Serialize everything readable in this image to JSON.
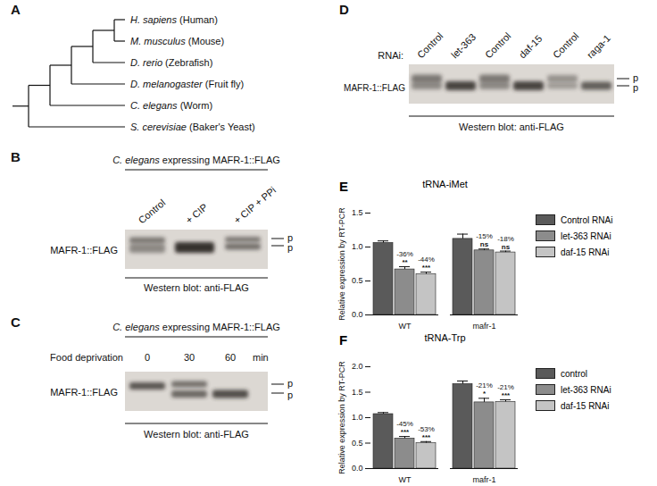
{
  "panels": {
    "A": {
      "label": "A",
      "type": "tree",
      "leaves": [
        {
          "species": "H. sapiens",
          "common": "(Human)"
        },
        {
          "species": "M. musculus",
          "common": "(Mouse)"
        },
        {
          "species": "D. rerio",
          "common": "(Zebrafish)"
        },
        {
          "species": "D. melanogaster",
          "common": "(Fruit fly)"
        },
        {
          "species": "C. elegans",
          "common": "(Worm)"
        },
        {
          "species": "S. cerevisiae",
          "common": "(Baker's Yeast)"
        }
      ]
    },
    "B": {
      "label": "B",
      "type": "western_blot",
      "title_italic": "C. elegans",
      "title": "expressing MAFR-1::FLAG",
      "lanes": [
        "Control",
        "+ CIP",
        "+ CIP + PPi"
      ],
      "protein": "MAFR-1::FLAG",
      "bands": [
        "p",
        "p"
      ],
      "footer": "Western blot: anti-FLAG"
    },
    "C": {
      "label": "C",
      "type": "western_blot",
      "title_italic": "C. elegans",
      "title": "expressing MAFR-1::FLAG",
      "condition": "Food deprivation",
      "lanes": [
        0,
        30,
        60
      ],
      "unit": "min",
      "protein": "MAFR-1::FLAG",
      "bands": [
        "p",
        "p"
      ],
      "footer": "Western blot: anti-FLAG"
    },
    "D": {
      "label": "D",
      "type": "western_blot",
      "row_title": "RNAi:",
      "lanes": [
        "Control",
        "let-363",
        "Control",
        "daf-15",
        "Control",
        "raga-1"
      ],
      "protein": "MAFR-1::FLAG",
      "bands": [
        "p",
        "p"
      ],
      "footer": "Western blot: anti-FLAG"
    }
  },
  "chart_data": [
    {
      "type": "bar",
      "panel_label": "E",
      "title": "tRNA-iMet",
      "y_label": "Relative expression by RT-PCR",
      "categories": [
        "WT",
        "mafr-1"
      ],
      "series": [
        {
          "name": "Control RNAi",
          "color": "#5a5a5a",
          "values": [
            1.06,
            1.12
          ],
          "errors": [
            0.03,
            0.07
          ],
          "change": [
            null,
            null
          ],
          "significance": [
            null,
            null
          ]
        },
        {
          "name": "let-363 RNAi",
          "color": "#8c8c8c",
          "values": [
            0.67,
            0.95
          ],
          "errors": [
            0.04,
            0.02
          ],
          "change": [
            "-36%",
            "-15%"
          ],
          "significance": [
            "**",
            "ns"
          ]
        },
        {
          "name": "daf-15 RNAi",
          "color": "#c4c4c4",
          "values": [
            0.6,
            0.92
          ],
          "errors": [
            0.03,
            0.02
          ],
          "change": [
            "-44%",
            "-18%"
          ],
          "significance": [
            "***",
            "ns"
          ]
        }
      ],
      "ylim": [
        0,
        1.5
      ],
      "yticks": [
        {
          "value": 0,
          "label": "0.0"
        },
        {
          "value": 0.5,
          "label": "0.5"
        },
        {
          "value": 1,
          "label": "1.0"
        },
        {
          "value": 1.5,
          "label": "1.5"
        }
      ],
      "legend": "right"
    },
    {
      "type": "bar",
      "panel_label": "F",
      "title": "tRNA-Trp",
      "y_label": "Relative expression by RT-PCR",
      "categories": [
        "WT",
        "mafr-1"
      ],
      "series": [
        {
          "name": "control",
          "color": "#5a5a5a",
          "values": [
            1.07,
            1.66
          ],
          "errors": [
            0.03,
            0.06
          ],
          "change": [
            null,
            null
          ],
          "significance": [
            null,
            null
          ]
        },
        {
          "name": "let-363 RNAi",
          "color": "#8c8c8c",
          "values": [
            0.59,
            1.3
          ],
          "errors": [
            0.04,
            0.08
          ],
          "change": [
            "-45%",
            "-21%"
          ],
          "significance": [
            "***",
            "*"
          ]
        },
        {
          "name": "daf-15 RNAi",
          "color": "#c4c4c4",
          "values": [
            0.5,
            1.31
          ],
          "errors": [
            0.03,
            0.04
          ],
          "change": [
            "-53%",
            "-21%"
          ],
          "significance": [
            "***",
            "***"
          ]
        }
      ],
      "ylim": [
        0,
        2
      ],
      "yticks": [
        {
          "value": 0,
          "label": "0.0"
        },
        {
          "value": 0.5,
          "label": "0.5"
        },
        {
          "value": 1,
          "label": "1.0"
        },
        {
          "value": 1.5,
          "label": "1.5"
        },
        {
          "value": 2,
          "label": "2.0"
        }
      ],
      "legend": "right"
    }
  ]
}
